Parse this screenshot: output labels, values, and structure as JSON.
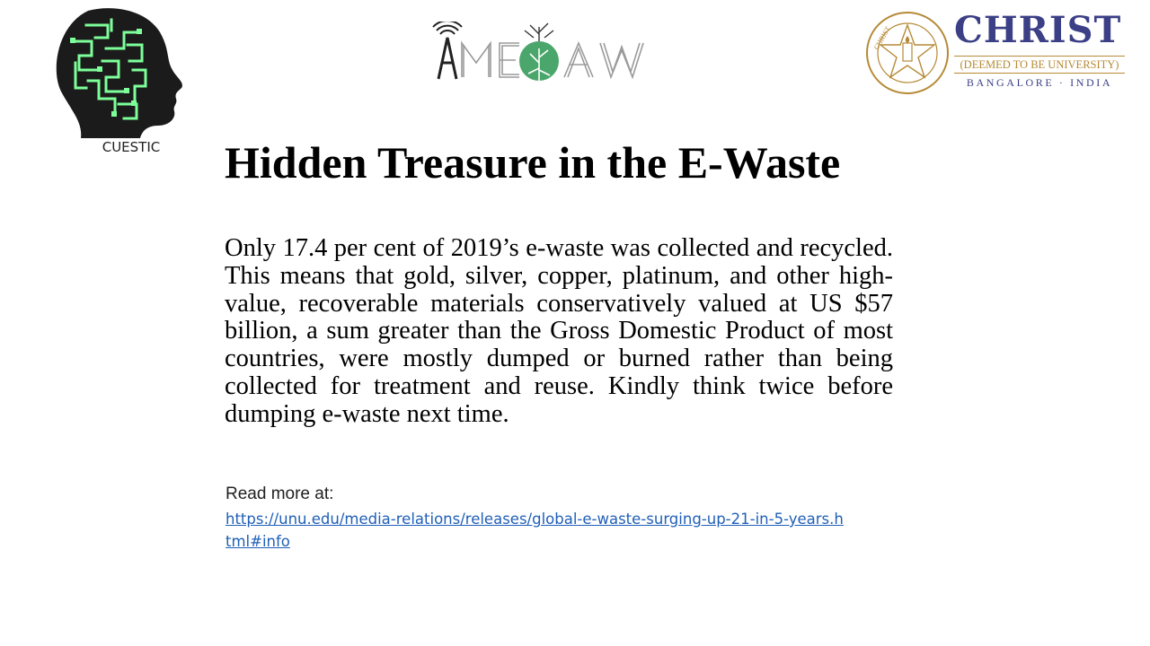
{
  "logos": {
    "left_label": "CUESTIC",
    "center_wordmark": "MEWAW",
    "right": {
      "name": "CHRIST",
      "subtitle": "(DEEMED TO BE UNIVERSITY)",
      "location": "BANGALORE · INDIA",
      "seal_text": "EXCELLENCE AND SERVICE"
    }
  },
  "slide": {
    "title": "Hidden Treasure in the E-Waste",
    "body": "Only 17.4 per cent of 2019’s e-waste was collected and recycled. This means that gold, silver, copper, platinum, and other high-value, recoverable materials conservatively valued at US $57 billion, a sum greater than the Gross Domestic Product of most countries, were mostly dumped or burned rather than being collected for treatment and reuse. Kindly think twice before dumping e-waste next time.",
    "read_more_label": "Read more at:",
    "read_more_url": "https://unu.edu/media-relations/releases/global-e-waste-surging-up-21-in-5-years.html#info"
  },
  "colors": {
    "christ_navy": "#3b3f86",
    "christ_gold": "#b58a36",
    "link_blue": "#1f5fb8",
    "mewaw_green": "#4aa66a",
    "circuit_green": "#7dff9a"
  }
}
